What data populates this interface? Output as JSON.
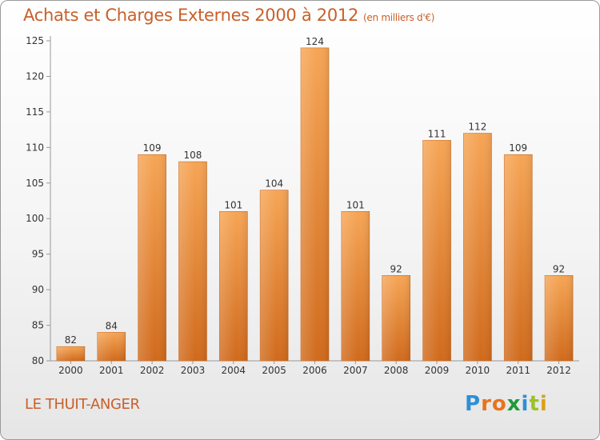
{
  "header": {
    "title": "Achats et Charges Externes 2000 à 2012",
    "subtitle": "(en milliers d'€)"
  },
  "footer": {
    "commune": "LE THUIT-ANGER",
    "logo_letters": [
      "P",
      "r",
      "o",
      "x",
      "i",
      "t",
      "i"
    ],
    "logo_colors": [
      "#2e8fd6",
      "#e8731e",
      "#e8731e",
      "#1f9a3a",
      "#2e8fd6",
      "#9bc22b",
      "#d9a21b"
    ]
  },
  "chart_data": {
    "type": "bar",
    "categories": [
      "2000",
      "2001",
      "2002",
      "2003",
      "2004",
      "2005",
      "2006",
      "2007",
      "2008",
      "2009",
      "2010",
      "2011",
      "2012"
    ],
    "values": [
      82,
      84,
      109,
      108,
      101,
      104,
      124,
      101,
      92,
      111,
      112,
      109,
      92
    ],
    "ylim": [
      80,
      125
    ],
    "yticks": [
      80,
      85,
      90,
      95,
      100,
      105,
      110,
      115,
      120,
      125
    ],
    "grid": false,
    "bar_color": "#f0923c",
    "bar_color_dark": "#d9701f",
    "title": "Achats et Charges Externes 2000 à 2012",
    "xlabel": "",
    "ylabel": ""
  }
}
